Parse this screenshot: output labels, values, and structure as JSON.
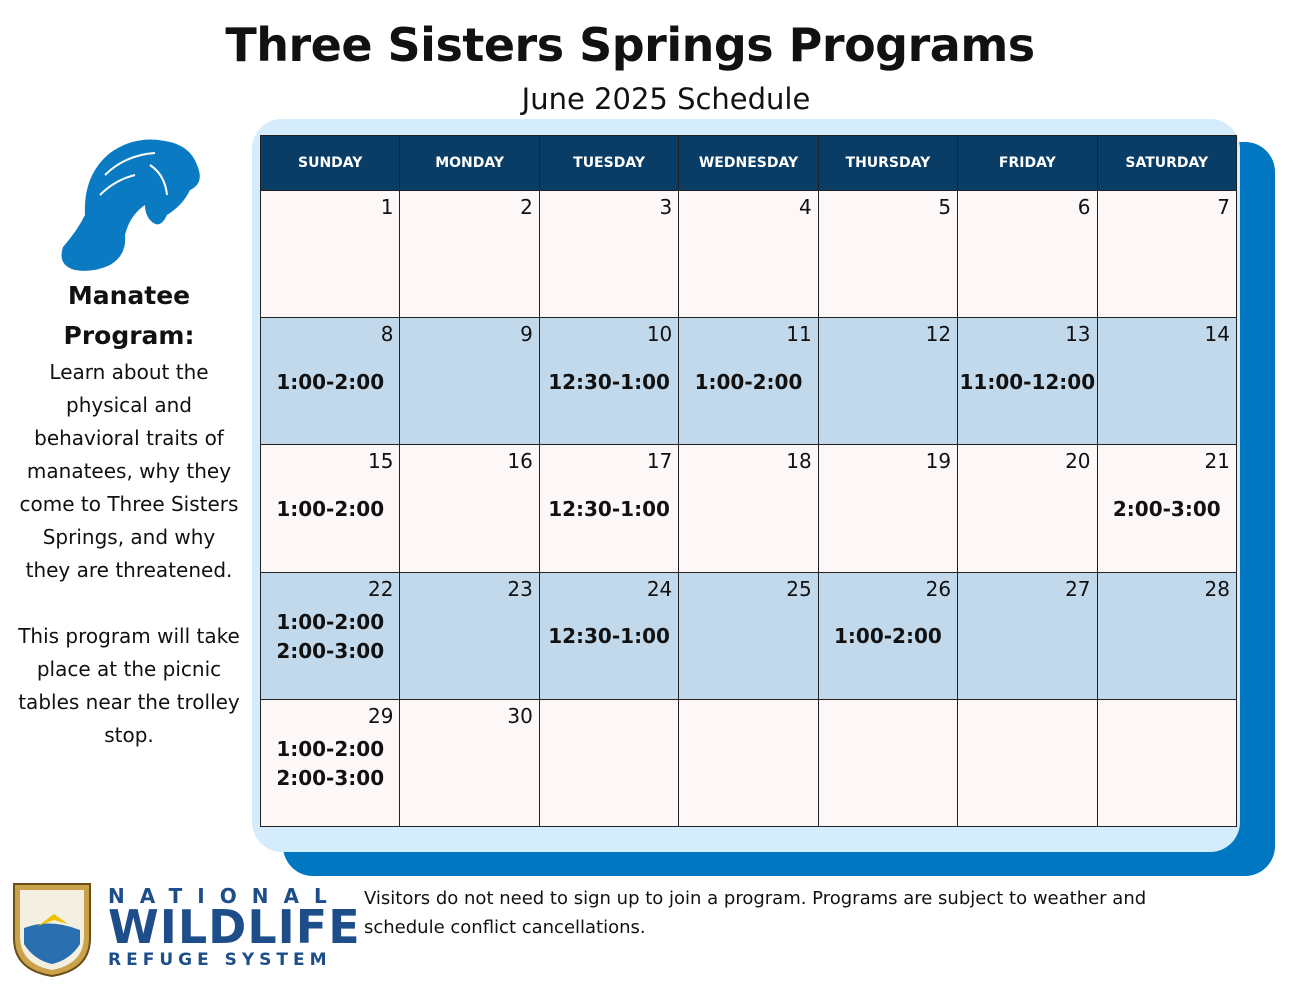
{
  "header": {
    "title": "Three Sisters Springs Programs",
    "subtitle": "June 2025 Schedule"
  },
  "sidebar": {
    "heading": "Manatee Program:",
    "description": "Learn about the physical and behavioral traits of manatees, why they come to Three Sisters Springs, and why they are threatened.",
    "location": "This program will take place at the picnic tables near the trolley stop."
  },
  "calendar": {
    "weekdays": [
      "SUNDAY",
      "MONDAY",
      "TUESDAY",
      "WEDNESDAY",
      "THURSDAY",
      "FRIDAY",
      "SATURDAY"
    ],
    "weeks": [
      [
        {
          "day": 1,
          "times": []
        },
        {
          "day": 2,
          "times": []
        },
        {
          "day": 3,
          "times": []
        },
        {
          "day": 4,
          "times": []
        },
        {
          "day": 5,
          "times": []
        },
        {
          "day": 6,
          "times": []
        },
        {
          "day": 7,
          "times": []
        }
      ],
      [
        {
          "day": 8,
          "times": [
            "1:00-2:00"
          ]
        },
        {
          "day": 9,
          "times": []
        },
        {
          "day": 10,
          "times": [
            "12:30-1:00"
          ]
        },
        {
          "day": 11,
          "times": [
            "1:00-2:00"
          ]
        },
        {
          "day": 12,
          "times": []
        },
        {
          "day": 13,
          "times": [
            "11:00-12:00"
          ]
        },
        {
          "day": 14,
          "times": []
        }
      ],
      [
        {
          "day": 15,
          "times": [
            "1:00-2:00"
          ]
        },
        {
          "day": 16,
          "times": []
        },
        {
          "day": 17,
          "times": [
            "12:30-1:00"
          ]
        },
        {
          "day": 18,
          "times": []
        },
        {
          "day": 19,
          "times": []
        },
        {
          "day": 20,
          "times": []
        },
        {
          "day": 21,
          "times": [
            "2:00-3:00"
          ]
        }
      ],
      [
        {
          "day": 22,
          "times": [
            "1:00-2:00",
            "2:00-3:00"
          ]
        },
        {
          "day": 23,
          "times": []
        },
        {
          "day": 24,
          "times": [
            "12:30-1:00"
          ]
        },
        {
          "day": 25,
          "times": []
        },
        {
          "day": 26,
          "times": [
            "1:00-2:00"
          ]
        },
        {
          "day": 27,
          "times": []
        },
        {
          "day": 28,
          "times": []
        }
      ],
      [
        {
          "day": 29,
          "times": [
            "1:00-2:00",
            "2:00-3:00"
          ]
        },
        {
          "day": 30,
          "times": []
        },
        null,
        null,
        null,
        null,
        null
      ]
    ]
  },
  "footer": {
    "logo": {
      "line1": "NATIONAL",
      "line2": "WILDLIFE",
      "line3": "REFUGE SYSTEM"
    },
    "note": "Visitors do not need to sign up to join a program. Programs are subject to weather and schedule conflict cancellations."
  }
}
